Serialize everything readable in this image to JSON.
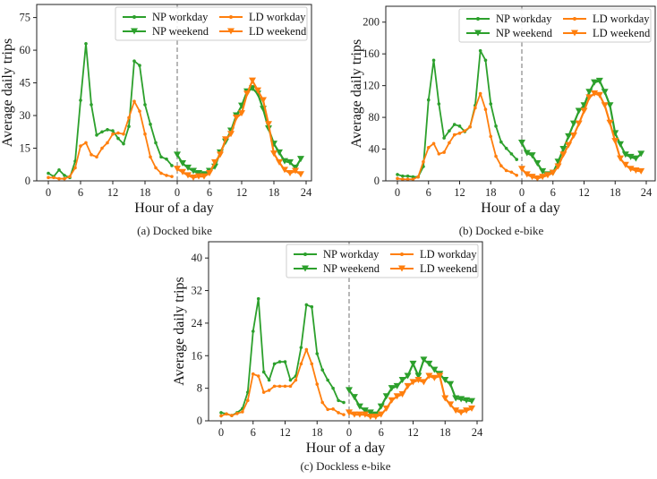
{
  "colors": {
    "NP": "#2ca02c",
    "LD": "#ff7f0e",
    "divider": "#888888"
  },
  "legend": [
    {
      "label": "NP workday",
      "group": "NP",
      "marker": "dot"
    },
    {
      "label": "NP weekend",
      "group": "NP",
      "marker": "triangle"
    },
    {
      "label": "LD workday",
      "group": "LD",
      "marker": "dot"
    },
    {
      "label": "LD weekend",
      "group": "LD",
      "marker": "triangle"
    }
  ],
  "chart_data": [
    {
      "type": "line",
      "caption": "(a) Docked bike",
      "xlabel": "Hour of a day",
      "ylabel": "Average daily trips",
      "xticks": [
        "0",
        "6",
        "12",
        "18",
        "0",
        "6",
        "12",
        "18",
        "24"
      ],
      "yticks": [
        0,
        15,
        30,
        45,
        60,
        75
      ],
      "ylim": [
        0,
        81
      ],
      "legend_position": "upper-right",
      "hours": [
        0,
        1,
        2,
        3,
        4,
        5,
        6,
        7,
        8,
        9,
        10,
        11,
        12,
        13,
        14,
        15,
        16,
        17,
        18,
        19,
        20,
        21,
        22,
        23
      ],
      "series": [
        {
          "name": "NP workday",
          "values": [
            3.5,
            2,
            5,
            2.5,
            1.5,
            9,
            37,
            63,
            35,
            21,
            22.5,
            23.5,
            23,
            19.5,
            17,
            25,
            55,
            53,
            35,
            26,
            17.5,
            11,
            10,
            7
          ]
        },
        {
          "name": "NP weekend",
          "values": [
            12,
            8,
            6,
            4.5,
            3.5,
            3,
            4.5,
            6.5,
            13,
            18,
            23,
            30,
            34.5,
            41,
            42.5,
            40,
            33,
            24,
            17,
            13,
            9,
            8.5,
            6,
            10
          ]
        },
        {
          "name": "LD workday",
          "values": [
            1.5,
            1.5,
            1,
            1,
            2,
            6,
            16,
            17.5,
            12,
            11,
            15,
            17.5,
            21.5,
            22,
            21.5,
            29,
            36.5,
            32,
            21.5,
            11,
            6,
            3.5,
            2.5,
            2
          ]
        },
        {
          "name": "LD weekend",
          "values": [
            5.5,
            4,
            2.5,
            1.5,
            2,
            2,
            3.5,
            8.5,
            12,
            19,
            21.5,
            29,
            31,
            40,
            46,
            41.5,
            37,
            26,
            12.5,
            8.5,
            5,
            3.5,
            4.5,
            3
          ]
        }
      ]
    },
    {
      "type": "line",
      "caption": "(b) Docked e-bike",
      "xlabel": "Hour of a day",
      "ylabel": "Average daily trips",
      "xticks": [
        "0",
        "6",
        "12",
        "18",
        "0",
        "6",
        "12",
        "18",
        "24"
      ],
      "yticks": [
        0,
        40,
        80,
        120,
        160,
        200
      ],
      "ylim": [
        0,
        220
      ],
      "legend_position": "upper-right",
      "hours": [
        0,
        1,
        2,
        3,
        4,
        5,
        6,
        7,
        8,
        9,
        10,
        11,
        12,
        13,
        14,
        15,
        16,
        17,
        18,
        19,
        20,
        21,
        22,
        23
      ],
      "series": [
        {
          "name": "NP workday",
          "values": [
            8,
            6,
            6,
            5,
            5,
            18,
            102,
            152,
            97,
            54,
            63,
            71,
            69,
            62,
            68,
            95,
            164,
            152,
            97,
            69,
            49,
            41,
            34,
            27
          ]
        },
        {
          "name": "NP weekend",
          "values": [
            48,
            35,
            32,
            22,
            12,
            8,
            10,
            24,
            40,
            56,
            72,
            88,
            95,
            112,
            124,
            126,
            112,
            95,
            60,
            46,
            33,
            30,
            28,
            34
          ]
        },
        {
          "name": "LD workday",
          "values": [
            3,
            2,
            2,
            2,
            5,
            24,
            42,
            47,
            34,
            36,
            48,
            58,
            60,
            63,
            68,
            92,
            110,
            90,
            56,
            31,
            19,
            13,
            11,
            7
          ]
        },
        {
          "name": "LD weekend",
          "values": [
            15,
            8,
            5,
            3,
            5,
            7,
            10,
            18,
            33,
            45,
            57,
            72,
            88,
            105,
            110,
            108,
            95,
            73,
            50,
            28,
            20,
            15,
            13,
            12
          ]
        }
      ]
    },
    {
      "type": "line",
      "caption": "(c) Dockless e-bike",
      "xlabel": "Hour of a day",
      "ylabel": "Average daily trips",
      "xticks": [
        "0",
        "6",
        "12",
        "18",
        "0",
        "6",
        "12",
        "18",
        "24"
      ],
      "yticks": [
        0,
        8,
        16,
        24,
        32,
        40
      ],
      "ylim": [
        0,
        44
      ],
      "legend_position": "upper-right",
      "hours": [
        0,
        1,
        2,
        3,
        4,
        5,
        6,
        7,
        8,
        9,
        10,
        11,
        12,
        13,
        14,
        15,
        16,
        17,
        18,
        19,
        20,
        21,
        22,
        23
      ],
      "series": [
        {
          "name": "NP workday",
          "values": [
            2,
            1.7,
            1.3,
            2,
            3,
            7,
            22,
            30,
            12,
            10,
            14,
            14.5,
            14.5,
            10,
            11,
            18,
            28.5,
            28,
            16.5,
            12.5,
            10,
            8,
            5,
            4.5
          ]
        },
        {
          "name": "NP weekend",
          "values": [
            7.5,
            5.8,
            3.5,
            2.5,
            2,
            1.5,
            3.5,
            6,
            8,
            8.5,
            10,
            11,
            14,
            11,
            15,
            14,
            12.5,
            11.5,
            10,
            9,
            5.5,
            5.3,
            5,
            4.8
          ]
        },
        {
          "name": "LD workday",
          "values": [
            1.2,
            1.7,
            1.3,
            1.8,
            2.2,
            5,
            11.5,
            11,
            7,
            7.5,
            8.5,
            8.5,
            8.5,
            8.5,
            10,
            14,
            17.5,
            14,
            9,
            4.5,
            2.8,
            2.9,
            2,
            1.5
          ]
        },
        {
          "name": "LD weekend",
          "values": [
            2,
            1.5,
            1.5,
            1.5,
            1,
            1,
            1.5,
            3,
            5,
            6,
            6.5,
            8.5,
            9.5,
            10,
            9.5,
            11,
            10.5,
            11,
            5.5,
            4,
            2.5,
            2,
            2.5,
            3
          ]
        }
      ]
    }
  ]
}
